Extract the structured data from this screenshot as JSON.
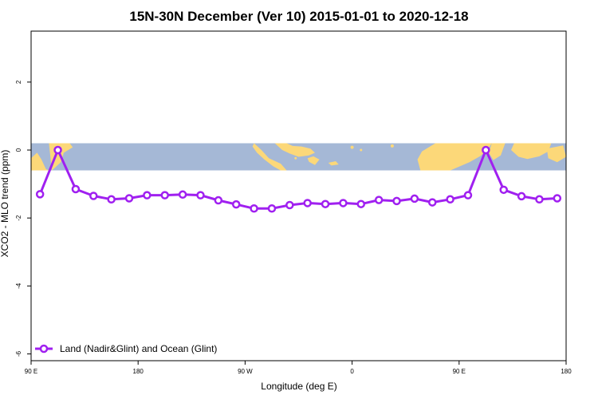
{
  "chart_data": {
    "type": "line",
    "title": "15N-30N December (Ver 10)   2015-01-01 to 2020-12-18",
    "xlabel": "Longitude (deg E)",
    "ylabel": "XCO2 - MLO trend (ppm)",
    "xlim": [
      90,
      450
    ],
    "ylim": [
      -6.2,
      3.5
    ],
    "x_tick_values": [
      90,
      162,
      234,
      306,
      378,
      450
    ],
    "x_tick_labels": [
      "90 E",
      "180",
      "90 W",
      "0",
      "90 E",
      "180"
    ],
    "y_ticks": [
      2,
      0,
      -2,
      -4,
      -6
    ],
    "grid": false,
    "legend_position": "bottom-left",
    "map_band": {
      "y_top": 0.2,
      "y_bottom": -0.6,
      "ocean_color": "#a5b8d6",
      "land_color": "#fcd879"
    },
    "series": [
      {
        "name": "Land (Nadir&Glint) and Ocean (Glint)",
        "color": "#a020f0",
        "x": [
          96,
          108,
          120,
          132,
          144,
          156,
          168,
          180,
          192,
          204,
          216,
          228,
          240,
          252,
          264,
          276,
          288,
          300,
          312,
          324,
          336,
          348,
          360,
          372,
          384,
          396,
          408,
          420,
          432,
          444
        ],
        "y": [
          -1.3,
          0.0,
          -1.15,
          -1.35,
          -1.45,
          -1.42,
          -1.33,
          -1.33,
          -1.31,
          -1.33,
          -1.48,
          -1.6,
          -1.72,
          -1.72,
          -1.62,
          -1.56,
          -1.59,
          -1.56,
          -1.59,
          -1.47,
          -1.5,
          -1.43,
          -1.54,
          -1.45,
          -1.33,
          0.0,
          -1.17,
          -1.36,
          -1.45,
          -1.42
        ]
      }
    ]
  }
}
